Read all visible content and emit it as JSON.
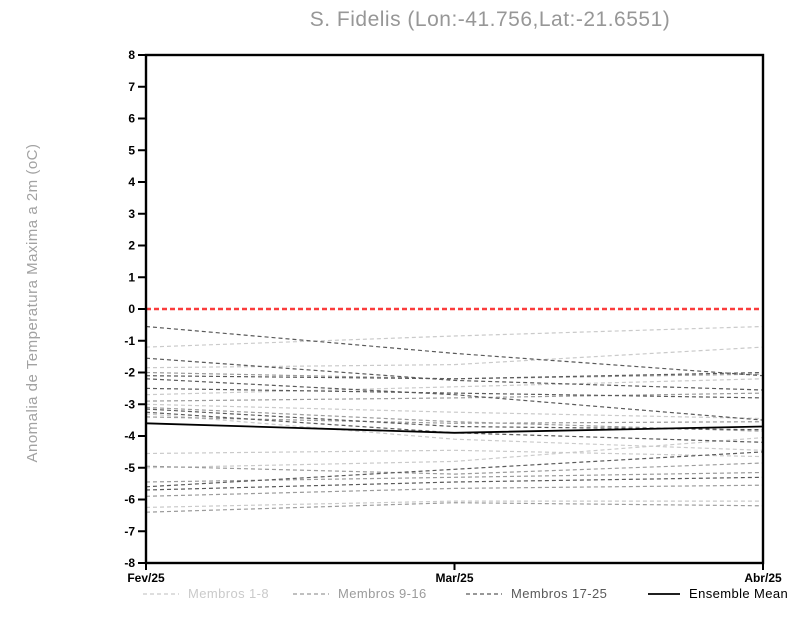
{
  "title": "S. Fidelis (Lon:-41.756,Lat:-21.6551)",
  "chart_data": {
    "type": "line",
    "title": "S. Fidelis (Lon:-41.756,Lat:-21.6551)",
    "xlabel": "",
    "ylabel": "Anomalia de Temperatura Maxima a 2m (oC)",
    "x_categories": [
      "Fev/25",
      "Mar/25",
      "Abr/25"
    ],
    "ylim": [
      -8,
      8
    ],
    "yticks": [
      8,
      7,
      6,
      5,
      4,
      3,
      2,
      1,
      0,
      -1,
      -2,
      -3,
      -4,
      -5,
      -6,
      -7,
      -8
    ],
    "grid": false,
    "legend_position": "bottom",
    "axis_color": "#000000",
    "tick_label_color": "#000000",
    "title_color": "#979797",
    "ylabel_color": "#a2a2a2",
    "zero_line": {
      "value": 0,
      "color": "#fa3c3c",
      "style": "dashed"
    },
    "series": [
      {
        "name": "Membros 1-8",
        "color": "#cacaca",
        "style": "dashed",
        "members": [
          [
            -1.2,
            -0.85,
            -0.55
          ],
          [
            -1.85,
            -1.75,
            -1.2
          ],
          [
            -2.7,
            -2.45,
            -2.2
          ],
          [
            -3.0,
            -3.25,
            -3.45
          ],
          [
            -3.3,
            -4.1,
            -4.45
          ],
          [
            -4.55,
            -4.45,
            -4.65
          ],
          [
            -5.0,
            -4.8,
            -4.05
          ],
          [
            -6.25,
            -6.05,
            -6.05
          ]
        ]
      },
      {
        "name": "Membros 9-16",
        "color": "#9b9b9b",
        "style": "dashed",
        "members": [
          [
            -2.0,
            -2.2,
            -2.05
          ],
          [
            -2.9,
            -2.8,
            -2.65
          ],
          [
            -3.1,
            -3.55,
            -3.85
          ],
          [
            -3.4,
            -3.6,
            -3.55
          ],
          [
            -4.95,
            -5.2,
            -4.85
          ],
          [
            -5.45,
            -5.3,
            -5.15
          ],
          [
            -5.9,
            -5.65,
            -5.55
          ],
          [
            -6.4,
            -6.1,
            -6.2
          ]
        ]
      },
      {
        "name": "Membros 17-25",
        "color": "#5a5a5a",
        "style": "dashed",
        "members": [
          [
            -0.55,
            -1.4,
            -2.1
          ],
          [
            -1.55,
            -2.25,
            -2.55
          ],
          [
            -2.1,
            -2.2,
            -2.0
          ],
          [
            -2.2,
            -2.7,
            -3.5
          ],
          [
            -2.5,
            -2.65,
            -2.8
          ],
          [
            -3.15,
            -3.7,
            -3.8
          ],
          [
            -3.25,
            -3.9,
            -4.2
          ],
          [
            -5.6,
            -5.05,
            -4.5
          ],
          [
            -5.7,
            -5.45,
            -5.3
          ]
        ]
      },
      {
        "name": "Ensemble Mean",
        "color": "#000000",
        "style": "solid",
        "members": [
          [
            -3.6,
            -3.9,
            -3.7
          ]
        ]
      }
    ]
  }
}
